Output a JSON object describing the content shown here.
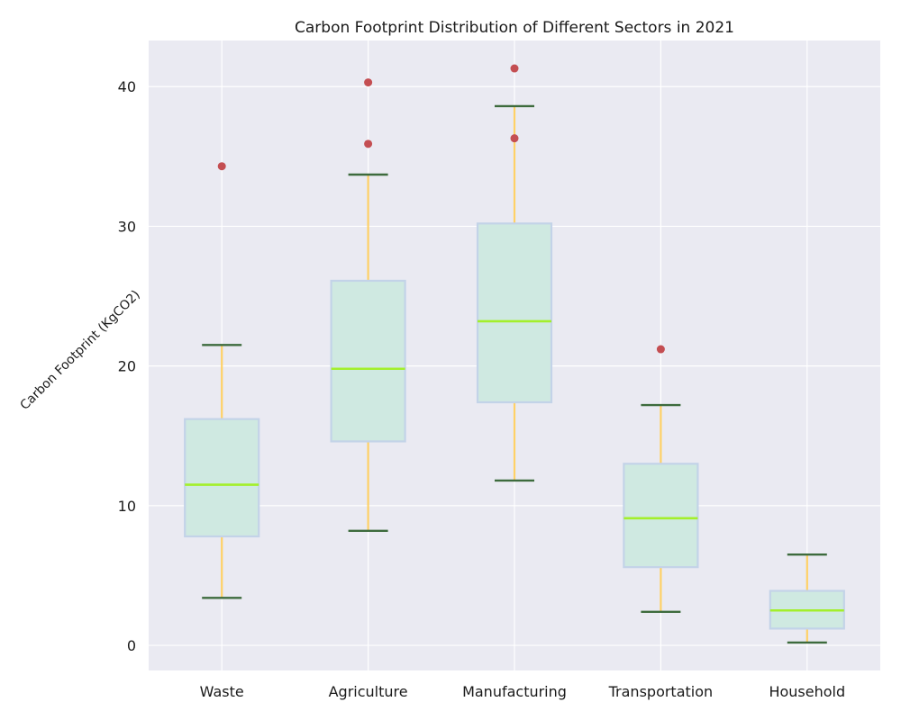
{
  "chart_data": {
    "type": "box",
    "title": "Carbon Footprint Distribution of Different Sectors in 2021",
    "xlabel": "",
    "ylabel": "Carbon Footprint (KgCO2)",
    "ylim": [
      -1.8,
      43.3
    ],
    "yticks": [
      0,
      10,
      20,
      30,
      40
    ],
    "grid": true,
    "categories": [
      "Waste",
      "Agriculture",
      "Manufacturing",
      "Transportation",
      "Household"
    ],
    "boxes": [
      {
        "whisker_low": 3.4,
        "q1": 7.8,
        "median": 11.5,
        "q3": 16.2,
        "whisker_high": 21.5,
        "outliers": [
          34.3
        ]
      },
      {
        "whisker_low": 8.2,
        "q1": 14.6,
        "median": 19.8,
        "q3": 26.1,
        "whisker_high": 33.7,
        "outliers": [
          35.9,
          40.3
        ]
      },
      {
        "whisker_low": 11.8,
        "q1": 17.4,
        "median": 23.2,
        "q3": 30.2,
        "whisker_high": 38.6,
        "outliers": [
          36.3,
          41.3
        ]
      },
      {
        "whisker_low": 2.4,
        "q1": 5.6,
        "median": 9.1,
        "q3": 13.0,
        "whisker_high": 17.2,
        "outliers": [
          21.2
        ]
      },
      {
        "whisker_low": 0.2,
        "q1": 1.2,
        "median": 2.5,
        "q3": 3.9,
        "whisker_high": 6.5,
        "outliers": []
      }
    ],
    "colors": {
      "background": "#eaeaf2",
      "grid": "#ffffff",
      "box_fill": "#cfe9e1",
      "box_edge": "#c3d3e8",
      "median": "#a3ef2b",
      "whisker": "#ffd166",
      "cap": "#3d6b3d",
      "outlier": "#c44e52"
    }
  }
}
